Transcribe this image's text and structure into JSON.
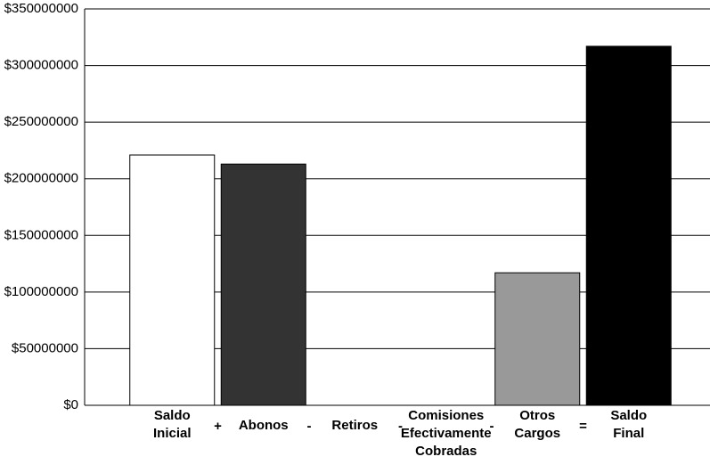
{
  "chart_data": {
    "type": "bar",
    "categories": [
      [
        "Saldo",
        "Inicial"
      ],
      [
        "Abonos"
      ],
      [
        "Retiros"
      ],
      [
        "Comisiones",
        "Efectivamente",
        "Cobradas"
      ],
      [
        "Otros",
        "Cargos"
      ],
      [
        "Saldo",
        "Final"
      ]
    ],
    "operators": [
      "+",
      "-",
      "-",
      "-",
      "="
    ],
    "values": [
      221000000,
      213000000,
      0,
      0,
      117000000,
      317000000
    ],
    "colors": [
      "#ffffff",
      "#333333",
      "#ffffff",
      "#ffffff",
      "#999999",
      "#000000"
    ],
    "ylim": [
      0,
      350000000
    ],
    "yticks": [
      {
        "value": 0,
        "label": "$0"
      },
      {
        "value": 50000000,
        "label": "$50000000"
      },
      {
        "value": 100000000,
        "label": "$100000000"
      },
      {
        "value": 150000000,
        "label": "$150000000"
      },
      {
        "value": 200000000,
        "label": "$200000000"
      },
      {
        "value": 250000000,
        "label": "$250000000"
      },
      {
        "value": 300000000,
        "label": "$300000000"
      },
      {
        "value": 350000000,
        "label": "$350000000"
      }
    ],
    "grid": true
  }
}
